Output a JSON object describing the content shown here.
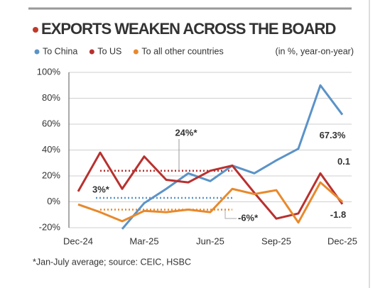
{
  "chart_data": {
    "type": "line",
    "title": "EXPORTS WEAKEN ACROSS THE BOARD",
    "units_note": "(in %, year-on-year)",
    "footnote": "*Jan-July average; source: CEIC, HSBC",
    "categories": [
      "Dec-24",
      null,
      null,
      "Mar-25",
      null,
      null,
      "Jun-25",
      null,
      null,
      "Sep-25",
      null,
      null,
      "Dec-25"
    ],
    "series": [
      {
        "name": "To China",
        "color": "#5b93c7",
        "values": [
          null,
          null,
          -21,
          -1,
          10,
          22,
          16,
          28,
          22,
          32,
          41,
          90,
          67.3
        ],
        "value_labels": [
          null,
          null,
          null,
          null,
          null,
          null,
          null,
          null,
          null,
          null,
          null,
          null,
          "67.3%"
        ]
      },
      {
        "name": "To US",
        "color": "#b8312f",
        "values": [
          8,
          38,
          10,
          35,
          17,
          15,
          24,
          28,
          7,
          -13,
          -9,
          22,
          -1.8
        ],
        "value_labels": [
          null,
          null,
          null,
          null,
          null,
          null,
          null,
          null,
          null,
          null,
          null,
          null,
          "-1.8"
        ]
      },
      {
        "name": "To all other countries",
        "color": "#e8892c",
        "values": [
          -2,
          -8,
          -15,
          -7,
          -8,
          -6,
          -8,
          10,
          6,
          9,
          -16,
          15,
          0.1
        ],
        "value_labels": [
          null,
          null,
          null,
          null,
          null,
          null,
          null,
          null,
          null,
          null,
          null,
          null,
          "0.1"
        ]
      }
    ],
    "averages": [
      {
        "series": 0,
        "value": 3,
        "label": "3%*"
      },
      {
        "series": 1,
        "value": 24,
        "label": "24%*"
      },
      {
        "series": 2,
        "value": -6,
        "label": "-6%*"
      }
    ],
    "ylim": [
      -20,
      100
    ],
    "yticks": [
      {
        "value": -20,
        "label": "-20%"
      },
      {
        "value": 0,
        "label": "0%"
      },
      {
        "value": 20,
        "label": "20%"
      },
      {
        "value": 40,
        "label": "40%"
      },
      {
        "value": 60,
        "label": "60%"
      },
      {
        "value": 80,
        "label": "80%"
      },
      {
        "value": 100,
        "label": "100%"
      }
    ],
    "grid": true
  }
}
